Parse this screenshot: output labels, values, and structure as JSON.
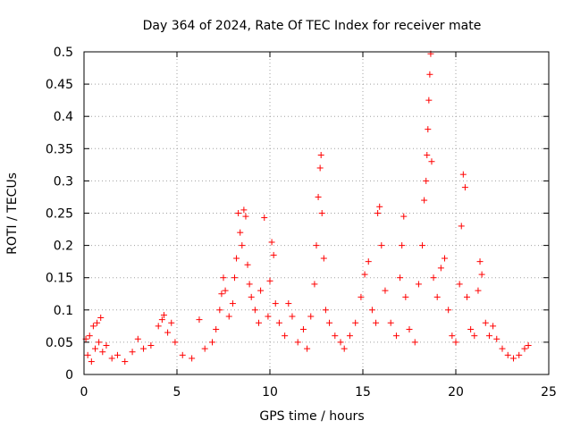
{
  "chart_data": {
    "type": "scatter",
    "title": "Day 364 of 2024, Rate Of TEC Index for receiver mate",
    "xlabel": "GPS time / hours",
    "ylabel": "ROTI / TECUs",
    "xlim": [
      0,
      25
    ],
    "ylim": [
      0,
      0.5
    ],
    "xticks": [
      0,
      5,
      10,
      15,
      20,
      25
    ],
    "yticks": [
      0,
      0.05,
      0.1,
      0.15,
      0.2,
      0.25,
      0.3,
      0.35,
      0.4,
      0.45,
      0.5
    ],
    "xtick_labels": [
      "0",
      "5",
      "10",
      "15",
      "20",
      "25"
    ],
    "ytick_labels": [
      "0",
      "0.05",
      "0.1",
      "0.15",
      "0.2",
      "0.25",
      "0.3",
      "0.35",
      "0.4",
      "0.45",
      "0.5"
    ],
    "grid": true,
    "marker": "+",
    "series": [
      {
        "name": "ROTI",
        "color": "#ff0000",
        "points": [
          [
            0.1,
            0.055
          ],
          [
            0.2,
            0.03
          ],
          [
            0.3,
            0.06
          ],
          [
            0.4,
            0.02
          ],
          [
            0.5,
            0.075
          ],
          [
            0.6,
            0.04
          ],
          [
            0.7,
            0.08
          ],
          [
            0.8,
            0.05
          ],
          [
            0.9,
            0.088
          ],
          [
            1.0,
            0.035
          ],
          [
            1.2,
            0.045
          ],
          [
            1.5,
            0.025
          ],
          [
            1.8,
            0.03
          ],
          [
            2.2,
            0.02
          ],
          [
            2.6,
            0.035
          ],
          [
            2.9,
            0.055
          ],
          [
            3.2,
            0.04
          ],
          [
            3.6,
            0.045
          ],
          [
            4.0,
            0.075
          ],
          [
            4.2,
            0.085
          ],
          [
            4.3,
            0.092
          ],
          [
            4.5,
            0.065
          ],
          [
            4.7,
            0.08
          ],
          [
            4.9,
            0.05
          ],
          [
            5.3,
            0.03
          ],
          [
            5.8,
            0.025
          ],
          [
            6.2,
            0.085
          ],
          [
            6.5,
            0.04
          ],
          [
            6.9,
            0.05
          ],
          [
            7.1,
            0.07
          ],
          [
            7.3,
            0.1
          ],
          [
            7.4,
            0.125
          ],
          [
            7.5,
            0.15
          ],
          [
            7.6,
            0.13
          ],
          [
            7.8,
            0.09
          ],
          [
            8.0,
            0.11
          ],
          [
            8.1,
            0.15
          ],
          [
            8.2,
            0.18
          ],
          [
            8.3,
            0.25
          ],
          [
            8.4,
            0.22
          ],
          [
            8.5,
            0.2
          ],
          [
            8.6,
            0.255
          ],
          [
            8.7,
            0.245
          ],
          [
            8.8,
            0.17
          ],
          [
            8.9,
            0.14
          ],
          [
            9.0,
            0.12
          ],
          [
            9.2,
            0.1
          ],
          [
            9.4,
            0.08
          ],
          [
            9.5,
            0.13
          ],
          [
            9.7,
            0.243
          ],
          [
            9.9,
            0.09
          ],
          [
            10.0,
            0.145
          ],
          [
            10.1,
            0.205
          ],
          [
            10.2,
            0.185
          ],
          [
            10.3,
            0.11
          ],
          [
            10.5,
            0.08
          ],
          [
            10.8,
            0.06
          ],
          [
            11.0,
            0.11
          ],
          [
            11.2,
            0.09
          ],
          [
            11.5,
            0.05
          ],
          [
            11.8,
            0.07
          ],
          [
            12.0,
            0.04
          ],
          [
            12.2,
            0.09
          ],
          [
            12.4,
            0.14
          ],
          [
            12.5,
            0.2
          ],
          [
            12.6,
            0.275
          ],
          [
            12.7,
            0.32
          ],
          [
            12.75,
            0.34
          ],
          [
            12.8,
            0.25
          ],
          [
            12.9,
            0.18
          ],
          [
            13.0,
            0.1
          ],
          [
            13.2,
            0.08
          ],
          [
            13.5,
            0.06
          ],
          [
            13.8,
            0.05
          ],
          [
            14.0,
            0.04
          ],
          [
            14.3,
            0.06
          ],
          [
            14.6,
            0.08
          ],
          [
            14.9,
            0.12
          ],
          [
            15.1,
            0.155
          ],
          [
            15.3,
            0.175
          ],
          [
            15.5,
            0.1
          ],
          [
            15.7,
            0.08
          ],
          [
            15.8,
            0.25
          ],
          [
            15.9,
            0.26
          ],
          [
            16.0,
            0.2
          ],
          [
            16.2,
            0.13
          ],
          [
            16.5,
            0.08
          ],
          [
            16.8,
            0.06
          ],
          [
            17.0,
            0.15
          ],
          [
            17.1,
            0.2
          ],
          [
            17.2,
            0.245
          ],
          [
            17.3,
            0.12
          ],
          [
            17.5,
            0.07
          ],
          [
            17.8,
            0.05
          ],
          [
            18.0,
            0.14
          ],
          [
            18.2,
            0.2
          ],
          [
            18.3,
            0.27
          ],
          [
            18.4,
            0.3
          ],
          [
            18.45,
            0.34
          ],
          [
            18.5,
            0.38
          ],
          [
            18.55,
            0.425
          ],
          [
            18.6,
            0.465
          ],
          [
            18.65,
            0.497
          ],
          [
            18.7,
            0.33
          ],
          [
            18.8,
            0.15
          ],
          [
            19.0,
            0.12
          ],
          [
            19.2,
            0.165
          ],
          [
            19.4,
            0.18
          ],
          [
            19.6,
            0.1
          ],
          [
            19.8,
            0.06
          ],
          [
            20.0,
            0.05
          ],
          [
            20.2,
            0.14
          ],
          [
            20.3,
            0.23
          ],
          [
            20.4,
            0.31
          ],
          [
            20.5,
            0.29
          ],
          [
            20.6,
            0.12
          ],
          [
            20.8,
            0.07
          ],
          [
            21.0,
            0.06
          ],
          [
            21.2,
            0.13
          ],
          [
            21.3,
            0.175
          ],
          [
            21.4,
            0.155
          ],
          [
            21.6,
            0.08
          ],
          [
            21.8,
            0.06
          ],
          [
            22.0,
            0.075
          ],
          [
            22.2,
            0.055
          ],
          [
            22.5,
            0.04
          ],
          [
            22.8,
            0.03
          ],
          [
            23.1,
            0.025
          ],
          [
            23.4,
            0.03
          ],
          [
            23.7,
            0.04
          ],
          [
            23.9,
            0.045
          ]
        ]
      }
    ]
  }
}
